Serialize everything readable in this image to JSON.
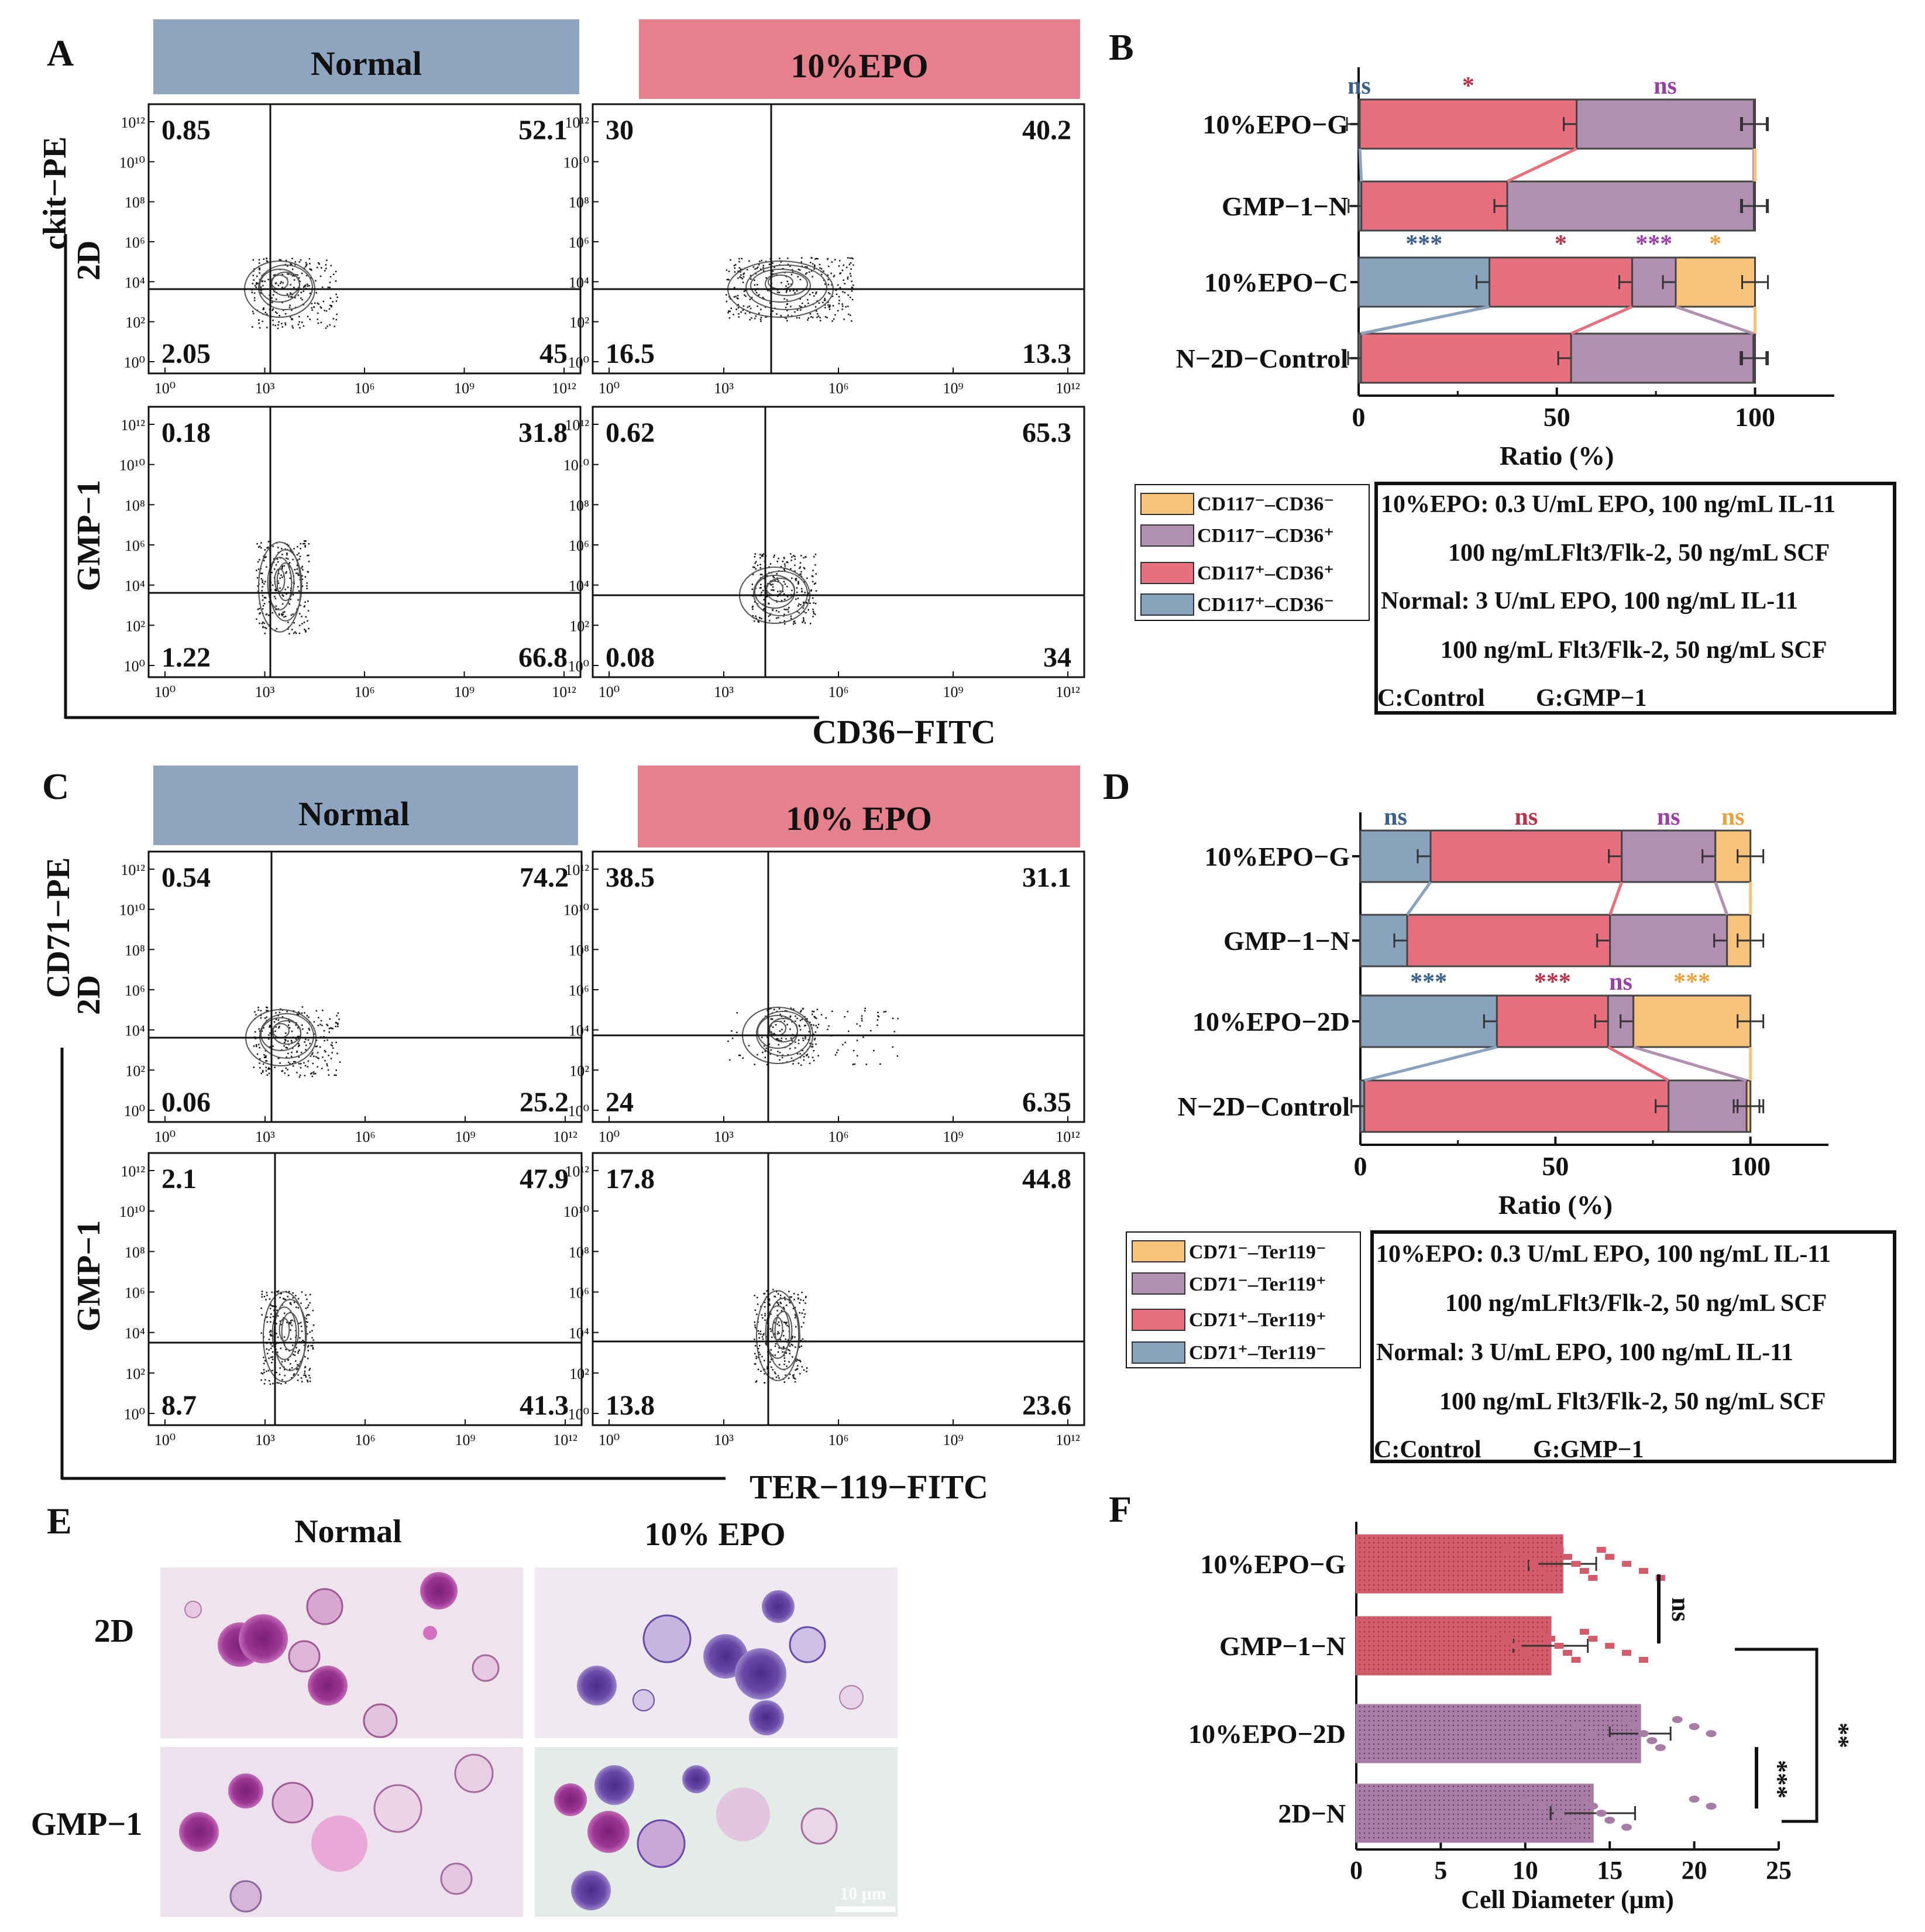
{
  "colors": {
    "normal_header": "#8fa5bf",
    "epo_header": "#e6808d",
    "blue": "#8aa3bd",
    "red": "#e8707e",
    "purple": "#b08fb1",
    "orange": "#f7c27a",
    "sig_blue": "#3a5f8a",
    "sig_red": "#b8324a",
    "sig_purple": "#9a3fa8",
    "sig_orange": "#e8a23c",
    "f_red": "#d45b6b",
    "f_purple": "#a77da6"
  },
  "panel_labels": {
    "A": "A",
    "B": "B",
    "C": "C",
    "D": "D",
    "E": "E",
    "F": "F"
  },
  "panel_a": {
    "header_left": "Normal",
    "header_right": "10%EPO",
    "y_channel": "ckit−PE",
    "x_channel": "CD36−FITC",
    "row_labels": [
      "2D",
      "GMP−1"
    ],
    "plots": [
      {
        "quadrants": [
          "0.85",
          "52.1",
          "2.05",
          "45"
        ]
      },
      {
        "quadrants": [
          "30",
          "40.2",
          "16.5",
          "13.3"
        ]
      },
      {
        "quadrants": [
          "0.18",
          "31.8",
          "1.22",
          "66.8"
        ]
      },
      {
        "quadrants": [
          "0.62",
          "65.3",
          "0.08",
          "34"
        ]
      }
    ]
  },
  "panel_c": {
    "header_left": "Normal",
    "header_right": "10% EPO",
    "y_channel": "CD71−PE",
    "x_channel": "TER−119−FITC",
    "row_labels": [
      "2D",
      "GMP−1"
    ],
    "plots": [
      {
        "quadrants": [
          "0.54",
          "74.2",
          "0.06",
          "25.2"
        ]
      },
      {
        "quadrants": [
          "38.5",
          "31.1",
          "24",
          "6.35"
        ]
      },
      {
        "quadrants": [
          "2.1",
          "47.9",
          "8.7",
          "41.3"
        ]
      },
      {
        "quadrants": [
          "17.8",
          "44.8",
          "13.8",
          "23.6"
        ]
      }
    ]
  },
  "flow_axis": {
    "y_ticks": [
      "10¹²",
      "10¹⁰",
      "10⁸",
      "10⁶",
      "10⁴",
      "10²",
      "10⁰"
    ],
    "x_ticks": [
      "10⁰",
      "10³",
      "10⁶",
      "10⁹",
      "10¹²"
    ]
  },
  "panel_b_legend": [
    "CD117⁻–CD36⁻",
    "CD117⁻–CD36⁺",
    "CD117⁺–CD36⁺",
    "CD117⁺–CD36⁻"
  ],
  "panel_d_legend": [
    "CD71⁻–Ter119⁻",
    "CD71⁻–Ter119⁺",
    "CD71⁺–Ter119⁺",
    "CD71⁺–Ter119⁻"
  ],
  "conditions_box": [
    "10%EPO: 0.3 U/mL EPO, 100 ng/mL IL-11",
    "100 ng/mLFlt3/Flk-2, 50 ng/mL SCF",
    "Normal: 3 U/mL EPO, 100 ng/mL IL-11",
    "100 ng/mL Flt3/Flk-2, 50 ng/mL SCF",
    "C:Control",
    "G:GMP−1"
  ],
  "panel_e": {
    "col_labels": [
      "Normal",
      "10% EPO"
    ],
    "row_labels": [
      "2D",
      "GMP−1"
    ],
    "scale_bar": "10 μm"
  },
  "chart_data": [
    {
      "id": "B",
      "type": "bar",
      "orientation": "horizontal-stacked",
      "categories": [
        "10%EPO−G",
        "GMP−1−N",
        "10%EPO−C",
        "N−2D−Control"
      ],
      "series": [
        {
          "name": "CD117⁺–CD36⁻",
          "values": [
            0.3,
            0.7,
            33,
            0.6
          ]
        },
        {
          "name": "CD117⁺–CD36⁺",
          "values": [
            54.7,
            36.8,
            36,
            53
          ]
        },
        {
          "name": "CD117⁻–CD36⁺",
          "values": [
            44.7,
            62.2,
            11,
            46
          ]
        },
        {
          "name": "CD117⁻–CD36⁻",
          "values": [
            0.3,
            0.3,
            20,
            0.4
          ]
        }
      ],
      "significance": [
        {
          "row": 0,
          "labels": [
            "ns",
            "*",
            "ns"
          ]
        },
        {
          "row": 2,
          "labels": [
            "***",
            "*",
            "***",
            "*"
          ]
        }
      ],
      "xlabel": "Ratio (%)",
      "xlim": [
        0,
        120
      ],
      "xticks": [
        0,
        50,
        100
      ]
    },
    {
      "id": "D",
      "type": "bar",
      "orientation": "horizontal-stacked",
      "categories": [
        "10%EPO−G",
        "GMP−1−N",
        "10%EPO−2D",
        "N−2D−Control"
      ],
      "series": [
        {
          "name": "CD71⁺–Ter119⁻",
          "values": [
            18,
            12,
            35,
            1
          ]
        },
        {
          "name": "CD71⁺–Ter119⁺",
          "values": [
            49,
            52,
            28.5,
            78
          ]
        },
        {
          "name": "CD71⁻–Ter119⁺",
          "values": [
            24,
            30,
            6.5,
            20
          ]
        },
        {
          "name": "CD71⁻–Ter119⁻",
          "values": [
            9,
            6,
            30,
            1
          ]
        }
      ],
      "significance": [
        {
          "row": 0,
          "labels": [
            "ns",
            "ns",
            "ns",
            "ns"
          ]
        },
        {
          "row": 2,
          "labels": [
            "***",
            "***",
            "ns",
            "***"
          ]
        }
      ],
      "xlabel": "Ratio (%)",
      "xlim": [
        0,
        120
      ],
      "xticks": [
        0,
        50,
        100
      ]
    },
    {
      "id": "F",
      "type": "bar",
      "orientation": "horizontal",
      "categories": [
        "10%EPO−G",
        "GMP−1−N",
        "10%EPO−2D",
        "2D−N"
      ],
      "values": [
        12.2,
        11.5,
        16.8,
        14
      ],
      "errors": [
        2.0,
        2.2,
        1.8,
        2.5
      ],
      "points": [
        [
          9,
          10,
          10.5,
          11,
          11.5,
          12,
          12.5,
          13,
          13.5,
          14,
          14.5,
          15,
          16,
          17,
          18
        ],
        [
          8,
          9,
          9.5,
          10,
          10.5,
          11,
          11.5,
          12,
          12.5,
          13,
          13.5,
          14,
          15,
          16,
          17
        ],
        [
          12,
          13,
          14,
          15,
          15.5,
          16,
          16.5,
          17,
          17.5,
          18,
          19,
          20,
          21
        ],
        [
          10,
          11,
          12,
          12.5,
          13,
          13.5,
          14,
          14.5,
          15,
          16,
          20,
          21
        ]
      ],
      "significance": [
        "ns",
        "**",
        "***"
      ],
      "xlabel": "Cell Diameter (μm)",
      "xlim": [
        0,
        25
      ],
      "xticks": [
        0,
        5,
        10,
        15,
        20,
        25
      ]
    }
  ]
}
